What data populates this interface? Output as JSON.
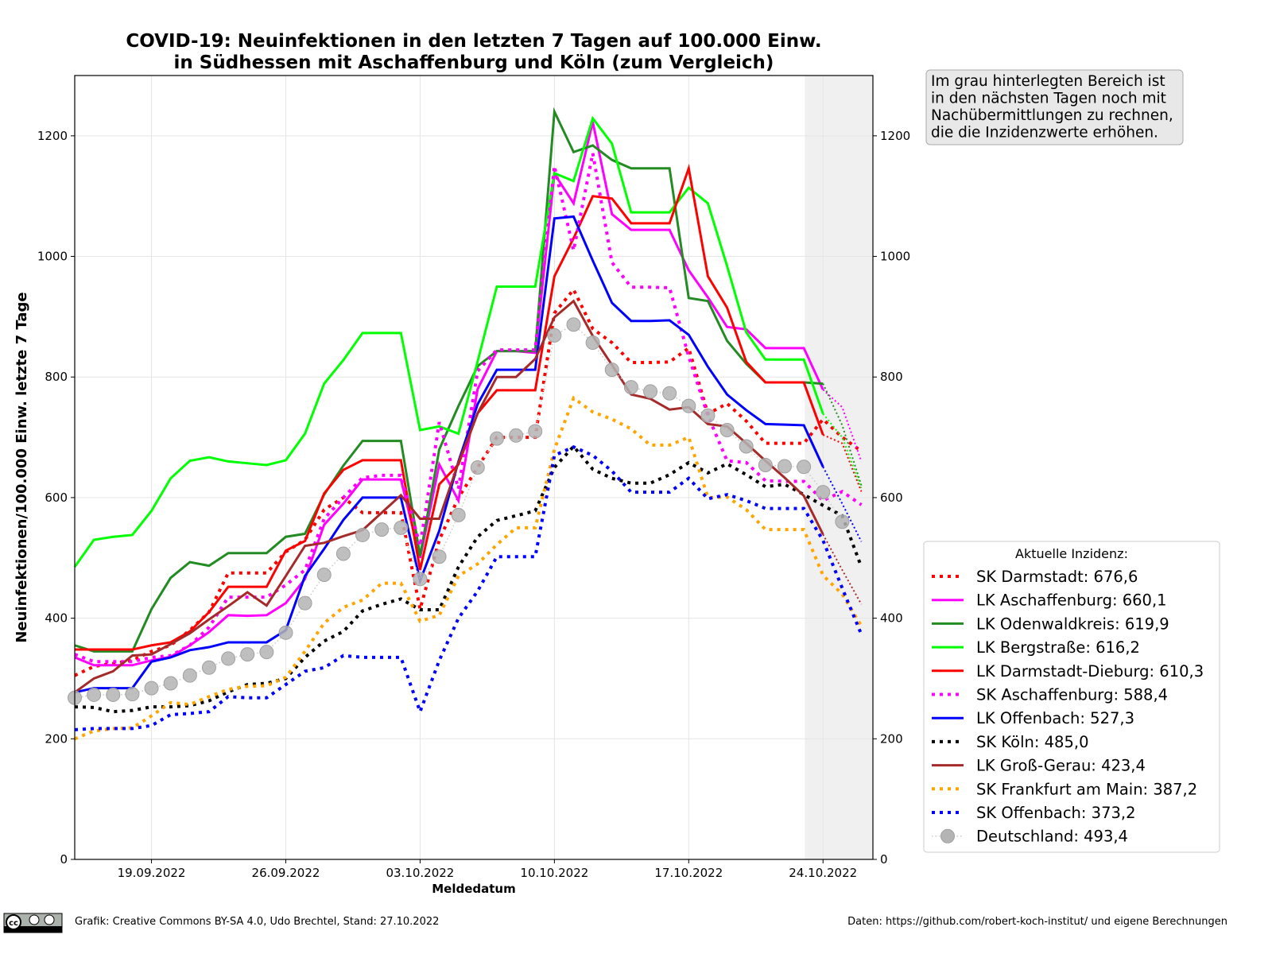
{
  "chart_data": {
    "type": "line",
    "title": [
      "COVID-19: Neuinfektionen in den letzten 7 Tagen auf 100.000 Einw.",
      "in Südhessen mit Aschaffenburg und Köln (zum Vergleich)"
    ],
    "xlabel": "Meldedatum",
    "ylabel": "Neuinfektionen/100.000 Einw. letzte 7 Tage",
    "x_start": "15.09.2022",
    "x_end": "26.10.2022",
    "x_days": 42,
    "x_range_days": [
      0,
      41.6
    ],
    "x_ticks": [
      {
        "day": 4,
        "label": "19.09.2022"
      },
      {
        "day": 11,
        "label": "26.09.2022"
      },
      {
        "day": 18,
        "label": "03.10.2022"
      },
      {
        "day": 25,
        "label": "10.10.2022"
      },
      {
        "day": 32,
        "label": "17.10.2022"
      },
      {
        "day": 39,
        "label": "24.10.2022"
      }
    ],
    "ylim": [
      0,
      1300
    ],
    "y_ticks": [
      0,
      200,
      400,
      600,
      800,
      1000,
      1200
    ],
    "grid": true,
    "shaded_from_day": 38.05,
    "provisional_from_day": 39,
    "annotation": [
      "Im grau hinterlegten Bereich ist",
      "in den nächsten Tagen noch mit",
      "Nachübermittlungen zu rechnen,",
      "die die Inzidenzwerte erhöhen."
    ],
    "legend_title": "Aktuelle Inzidenz:",
    "legend_position": "right",
    "series": [
      {
        "name": "SK Darmstadt: 676,6",
        "color": "#ff0000",
        "style": "dotted",
        "values": [
          305,
          320,
          325,
          330,
          345,
          355,
          380,
          410,
          475,
          475,
          475,
          510,
          530,
          580,
          600,
          575,
          575,
          575,
          415,
          530,
          600,
          650,
          700,
          700,
          700,
          906,
          945,
          880,
          857,
          824,
          824,
          825,
          848,
          739,
          756,
          727,
          690,
          690,
          690,
          730,
          700,
          677
        ]
      },
      {
        "name": "LK Aschaffenburg: 660,1",
        "color": "#ff00ff",
        "style": "solid",
        "values": [
          335,
          322,
          322,
          322,
          330,
          336,
          355,
          377,
          405,
          404,
          405,
          425,
          465,
          555,
          590,
          630,
          630,
          630,
          500,
          655,
          595,
          780,
          843,
          843,
          840,
          1137,
          1088,
          1223,
          1070,
          1044,
          1044,
          1044,
          977,
          932,
          883,
          879,
          848,
          848,
          848,
          779,
          750,
          660
        ]
      },
      {
        "name": "LK Odenwaldkreis: 619,9",
        "color": "#228b22",
        "style": "solid",
        "values": [
          355,
          345,
          345,
          345,
          415,
          467,
          493,
          487,
          508,
          508,
          508,
          535,
          540,
          605,
          653,
          694,
          694,
          694,
          503,
          680,
          752,
          818,
          843,
          843,
          843,
          1240,
          1173,
          1184,
          1160,
          1146,
          1146,
          1146,
          931,
          926,
          860,
          822,
          791,
          791,
          791,
          789,
          720,
          620
        ]
      },
      {
        "name": "LK Bergstraße: 616,2",
        "color": "#00ff00",
        "style": "solid",
        "values": [
          485,
          530,
          535,
          538,
          578,
          632,
          661,
          667,
          660,
          657,
          654,
          662,
          706,
          789,
          828,
          873,
          873,
          873,
          712,
          718,
          706,
          826,
          950,
          950,
          950,
          1138,
          1125,
          1229,
          1187,
          1073,
          1073,
          1073,
          1114,
          1088,
          984,
          874,
          829,
          829,
          829,
          739,
          700,
          616
        ]
      },
      {
        "name": "LK Darmstadt-Dieburg: 610,3",
        "color": "#ff0000",
        "style": "solid",
        "values": [
          348,
          348,
          348,
          348,
          355,
          360,
          378,
          410,
          452,
          452,
          452,
          512,
          528,
          607,
          646,
          662,
          662,
          662,
          480,
          622,
          655,
          740,
          778,
          778,
          778,
          967,
          1030,
          1100,
          1096,
          1055,
          1055,
          1055,
          1146,
          967,
          915,
          825,
          791,
          791,
          791,
          704,
          690,
          610
        ]
      },
      {
        "name": "SK Aschaffenburg: 588,4",
        "color": "#ff00ff",
        "style": "dotted",
        "values": [
          340,
          328,
          328,
          328,
          335,
          338,
          355,
          385,
          435,
          435,
          435,
          455,
          480,
          565,
          600,
          633,
          637,
          637,
          520,
          725,
          615,
          810,
          845,
          845,
          845,
          1150,
          1010,
          1171,
          990,
          949,
          949,
          948,
          834,
          736,
          661,
          658,
          628,
          627,
          627,
          595,
          610,
          588
        ]
      },
      {
        "name": "LK Offenbach: 527,3",
        "color": "#0000ff",
        "style": "solid",
        "values": [
          277,
          284,
          284,
          284,
          328,
          335,
          347,
          352,
          360,
          360,
          360,
          380,
          470,
          515,
          563,
          600,
          600,
          600,
          462,
          545,
          660,
          755,
          812,
          812,
          812,
          1063,
          1066,
          993,
          923,
          893,
          893,
          894,
          870,
          817,
          771,
          745,
          722,
          721,
          720,
          651,
          590,
          527
        ]
      },
      {
        "name": "SK Köln: 485,0",
        "color": "#000000",
        "style": "dotted",
        "values": [
          253,
          252,
          245,
          247,
          253,
          253,
          255,
          263,
          278,
          290,
          292,
          300,
          335,
          362,
          378,
          412,
          423,
          432,
          414,
          414,
          485,
          535,
          562,
          570,
          578,
          650,
          685,
          647,
          632,
          624,
          624,
          638,
          658,
          641,
          656,
          638,
          618,
          622,
          605,
          587,
          570,
          485
        ]
      },
      {
        "name": "LK Groß-Gerau: 423,4",
        "color": "#a52a2a",
        "style": "solid",
        "values": [
          277,
          300,
          312,
          338,
          340,
          357,
          375,
          398,
          420,
          443,
          421,
          470,
          520,
          525,
          536,
          546,
          575,
          604,
          565,
          565,
          658,
          740,
          800,
          800,
          830,
          899,
          926,
          868,
          820,
          771,
          764,
          746,
          750,
          722,
          718,
          690,
          661,
          633,
          603,
          539,
          480,
          423
        ]
      },
      {
        "name": "SK Frankfurt am Main: 387,2",
        "color": "#ffa500",
        "style": "dotted",
        "values": [
          200,
          213,
          217,
          218,
          238,
          260,
          257,
          270,
          282,
          287,
          288,
          302,
          345,
          392,
          418,
          430,
          458,
          458,
          395,
          405,
          470,
          490,
          522,
          550,
          550,
          680,
          765,
          742,
          730,
          714,
          687,
          687,
          700,
          600,
          601,
          580,
          547,
          547,
          547,
          471,
          440,
          387
        ]
      },
      {
        "name": "SK Offenbach: 373,2",
        "color": "#0000ff",
        "style": "dotted",
        "values": [
          215,
          217,
          217,
          217,
          222,
          240,
          242,
          245,
          270,
          268,
          268,
          290,
          312,
          318,
          338,
          335,
          335,
          335,
          245,
          330,
          400,
          445,
          502,
          502,
          502,
          670,
          684,
          670,
          644,
          609,
          609,
          609,
          632,
          598,
          605,
          595,
          582,
          582,
          582,
          529,
          450,
          373
        ]
      },
      {
        "name": "Deutschland: 493,4",
        "color": "#a0a0a0",
        "style": "markers",
        "values": [
          268,
          273,
          273,
          274,
          284,
          292,
          305,
          318,
          333,
          340,
          344,
          376,
          425,
          472,
          507,
          538,
          547,
          550,
          465,
          502,
          571,
          650,
          698,
          703,
          710,
          869,
          887,
          857,
          812,
          783,
          776,
          773,
          752,
          736,
          712,
          685,
          654,
          652,
          651,
          609,
          560,
          null
        ]
      }
    ]
  },
  "footer": {
    "left": "Grafik: Creative Commons BY-SA 4.0, Udo Brechtel, Stand: 27.10.2022",
    "right": "Daten: https://github.com/robert-koch-institut/ und eigene Berechnungen",
    "logo_text": "cc BY SA"
  }
}
